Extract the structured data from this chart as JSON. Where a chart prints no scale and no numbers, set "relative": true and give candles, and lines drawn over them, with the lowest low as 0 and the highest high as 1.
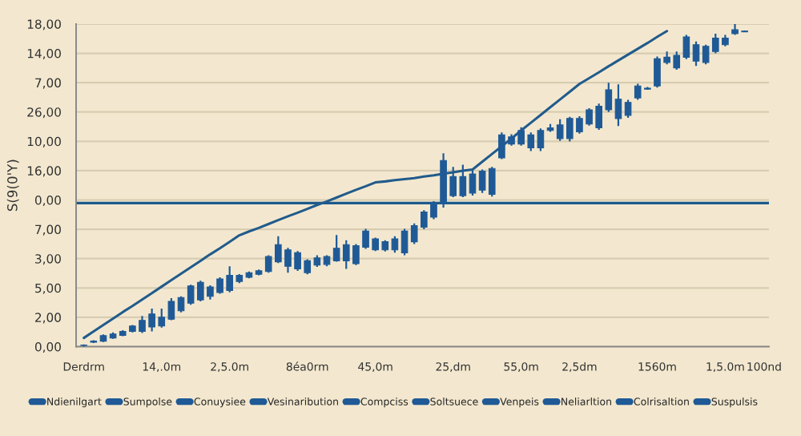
{
  "chart_data": {
    "type": "candlestick",
    "relative": true,
    "ylabel": "S(9(0'Y)",
    "categories": [
      "Derdrm",
      null,
      null,
      null,
      null,
      null,
      null,
      null,
      "14,.0m",
      null,
      null,
      null,
      null,
      null,
      null,
      "2,5.0m",
      null,
      null,
      null,
      null,
      null,
      null,
      null,
      "8éa0rm",
      null,
      null,
      null,
      null,
      null,
      null,
      "45,0m",
      null,
      null,
      null,
      null,
      null,
      null,
      null,
      "25,dm",
      null,
      null,
      null,
      null,
      null,
      null,
      "55,0m",
      null,
      null,
      null,
      null,
      null,
      "2,5dm",
      null,
      null,
      null,
      null,
      null,
      null,
      null,
      "1560m",
      null,
      null,
      null,
      null,
      null,
      null,
      "1,5.0m",
      null,
      null,
      null,
      "100nd"
    ],
    "annotations": [
      "0,00",
      "2,00",
      "5,00",
      "3,00",
      "7,00",
      "0,00",
      "16,00",
      "10,00",
      "26,00",
      "7,00",
      "14,00",
      "18,00"
    ],
    "grid": "y",
    "legend": "bottom",
    "ref_lines": [
      {
        "axis": "y",
        "value": 0.445,
        "color": "#1d5a8c"
      }
    ],
    "series": [
      {
        "name": "Ndienilgart",
        "color": "#1f5a96",
        "ohlc": [
          [
            0.004,
            0.007,
            0,
            0.005
          ],
          [
            0.014,
            0.02,
            0.011,
            0.017
          ],
          [
            0.017,
            0.038,
            0.014,
            0.034
          ],
          [
            0.027,
            0.044,
            0.024,
            0.039
          ],
          [
            0.035,
            0.051,
            0.032,
            0.047
          ],
          [
            0.047,
            0.067,
            0.044,
            0.064
          ],
          [
            0.047,
            0.095,
            0.042,
            0.081
          ],
          null,
          null,
          null,
          null,
          null,
          null,
          null,
          null,
          null,
          null,
          null,
          null,
          null,
          null,
          null,
          null,
          null,
          null,
          null,
          null,
          null,
          null,
          null,
          null,
          null,
          null,
          null,
          null,
          null,
          null,
          null,
          null,
          null,
          null,
          null,
          null,
          null,
          null,
          null,
          null,
          null,
          null,
          null,
          null,
          null,
          null,
          null,
          null,
          null,
          null,
          null,
          null,
          null,
          null,
          null,
          null,
          null,
          null,
          null,
          null,
          null,
          null,
          null,
          null
        ]
      },
      {
        "name": "Sumpolse",
        "color": "#1f5a96",
        "ohlc": [
          null,
          null,
          null,
          null,
          null,
          null,
          null,
          [
            0.061,
            0.118,
            0.047,
            0.101
          ],
          [
            0.064,
            0.118,
            0.059,
            0.091
          ],
          [
            0.085,
            0.15,
            0.082,
            0.14
          ],
          [
            0.111,
            0.156,
            0.106,
            0.152
          ],
          [
            0.135,
            0.192,
            0.13,
            0.188
          ],
          [
            0.145,
            0.204,
            0.14,
            0.199
          ],
          [
            0.156,
            0.19,
            0.146,
            0.185
          ],
          null,
          null,
          null,
          null,
          null,
          null,
          null,
          null,
          null,
          null,
          null,
          null,
          null,
          null,
          null,
          null,
          null,
          null,
          null,
          null,
          null,
          null,
          null,
          null,
          null,
          null,
          null,
          null,
          null,
          null,
          null,
          null,
          null,
          null,
          null,
          null,
          null,
          null,
          null,
          null,
          null,
          null,
          null,
          null,
          null,
          null,
          null,
          null,
          null,
          null,
          null,
          null,
          null,
          null,
          null,
          null,
          null
        ]
      },
      {
        "name": "Conuysiee",
        "color": "#1f5a96",
        "ohlc": [
          null,
          null,
          null,
          null,
          null,
          null,
          null,
          null,
          null,
          null,
          null,
          null,
          null,
          null,
          [
            0.168,
            0.215,
            0.164,
            0.21
          ],
          [
            0.174,
            0.249,
            0.168,
            0.221
          ],
          [
            0.202,
            0.225,
            0.197,
            0.221
          ],
          [
            0.215,
            0.233,
            0.212,
            0.229
          ],
          [
            0.224,
            0.239,
            0.221,
            0.235
          ],
          [
            0.233,
            0.283,
            0.229,
            0.279
          ],
          [
            0.263,
            0.342,
            0.259,
            0.316
          ],
          null,
          null,
          null,
          null,
          null,
          null,
          null,
          null,
          null,
          null,
          null,
          null,
          null,
          null,
          null,
          null,
          null,
          null,
          null,
          null,
          null,
          null,
          null,
          null,
          null,
          null,
          null,
          null,
          null,
          null,
          null,
          null,
          null,
          null,
          null,
          null,
          null,
          null,
          null,
          null,
          null,
          null,
          null,
          null,
          null,
          null,
          null,
          null,
          null,
          null
        ]
      },
      {
        "name": "Vesinaribution",
        "color": "#1f5a96",
        "ohlc": [
          null,
          null,
          null,
          null,
          null,
          null,
          null,
          null,
          null,
          null,
          null,
          null,
          null,
          null,
          null,
          null,
          null,
          null,
          null,
          null,
          null,
          [
            0.249,
            0.306,
            0.229,
            0.3
          ],
          [
            0.241,
            0.296,
            0.235,
            0.291
          ],
          [
            0.229,
            0.271,
            0.224,
            0.266
          ],
          [
            0.253,
            0.283,
            0.247,
            0.275
          ],
          [
            0.255,
            0.283,
            0.249,
            0.279
          ],
          [
            0.266,
            0.346,
            0.263,
            0.305
          ],
          [
            0.266,
            0.33,
            0.241,
            0.316
          ],
          null,
          null,
          null,
          null,
          null,
          null,
          null,
          null,
          null,
          null,
          null,
          null,
          null,
          null,
          null,
          null,
          null,
          null,
          null,
          null,
          null,
          null,
          null,
          null,
          null,
          null,
          null,
          null,
          null,
          null,
          null,
          null,
          null,
          null,
          null,
          null,
          null,
          null,
          null,
          null,
          null,
          null,
          null
        ]
      },
      {
        "name": "Compciss",
        "color": "#1f5a96",
        "ohlc": [
          null,
          null,
          null,
          null,
          null,
          null,
          null,
          null,
          null,
          null,
          null,
          null,
          null,
          null,
          null,
          null,
          null,
          null,
          null,
          null,
          null,
          null,
          null,
          null,
          null,
          null,
          null,
          null,
          [
            0.257,
            0.318,
            0.253,
            0.313
          ],
          [
            0.308,
            0.365,
            0.303,
            0.358
          ],
          [
            0.3,
            0.338,
            0.296,
            0.334
          ],
          [
            0.3,
            0.33,
            0.295,
            0.325
          ],
          [
            0.3,
            0.342,
            0.291,
            0.334
          ],
          [
            0.291,
            0.365,
            0.283,
            0.358
          ],
          [
            0.325,
            0.382,
            0.318,
            0.375
          ],
          null,
          null,
          null,
          null,
          null,
          null,
          null,
          null,
          null,
          null,
          null,
          null,
          null,
          null,
          null,
          null,
          null,
          null,
          null,
          null,
          null,
          null,
          null,
          null,
          null,
          null,
          null,
          null,
          null,
          null,
          null,
          null,
          null,
          null,
          null,
          null
        ]
      },
      {
        "name": "Soltsuece",
        "color": "#1f5a96",
        "ohlc": [
          null,
          null,
          null,
          null,
          null,
          null,
          null,
          null,
          null,
          null,
          null,
          null,
          null,
          null,
          null,
          null,
          null,
          null,
          null,
          null,
          null,
          null,
          null,
          null,
          null,
          null,
          null,
          null,
          null,
          null,
          null,
          null,
          null,
          null,
          null,
          [
            0.37,
            0.423,
            0.364,
            0.417
          ],
          [
            0.401,
            0.451,
            0.395,
            0.446
          ],
          [
            0.443,
            0.599,
            0.431,
            0.577
          ],
          [
            0.468,
            0.557,
            0.463,
            0.527
          ],
          [
            0.468,
            0.564,
            0.463,
            0.527
          ],
          [
            0.476,
            0.545,
            0.468,
            0.535
          ],
          [
            0.485,
            0.549,
            0.476,
            0.544
          ],
          null,
          null,
          null,
          null,
          null,
          null,
          null,
          null,
          null,
          null,
          null,
          null,
          null,
          null,
          null,
          null,
          null,
          null,
          null,
          null,
          null,
          null,
          null,
          null,
          null,
          null,
          null,
          null,
          null
        ]
      },
      {
        "name": "Venpeis",
        "color": "#1f5a96",
        "ohlc": [
          null,
          null,
          null,
          null,
          null,
          null,
          null,
          null,
          null,
          null,
          null,
          null,
          null,
          null,
          null,
          null,
          null,
          null,
          null,
          null,
          null,
          null,
          null,
          null,
          null,
          null,
          null,
          null,
          null,
          null,
          null,
          null,
          null,
          null,
          null,
          null,
          null,
          null,
          null,
          null,
          null,
          null,
          [
            0.472,
            0.557,
            0.465,
            0.552
          ],
          [
            0.585,
            0.664,
            0.581,
            0.656
          ],
          [
            0.628,
            0.658,
            0.623,
            0.65
          ],
          [
            0.628,
            0.68,
            0.623,
            0.67
          ],
          [
            0.616,
            0.664,
            0.606,
            0.656
          ],
          [
            0.616,
            0.676,
            0.606,
            0.67
          ],
          [
            0.67,
            0.69,
            0.666,
            0.678
          ],
          null,
          null,
          null,
          null,
          null,
          null,
          null,
          null,
          null,
          null,
          null,
          null,
          null,
          null,
          null,
          null,
          null,
          null,
          null,
          null,
          null,
          null
        ]
      },
      {
        "name": "Neliarltion",
        "color": "#1f5a96",
        "ohlc": [
          null,
          null,
          null,
          null,
          null,
          null,
          null,
          null,
          null,
          null,
          null,
          null,
          null,
          null,
          null,
          null,
          null,
          null,
          null,
          null,
          null,
          null,
          null,
          null,
          null,
          null,
          null,
          null,
          null,
          null,
          null,
          null,
          null,
          null,
          null,
          null,
          null,
          null,
          null,
          null,
          null,
          null,
          null,
          null,
          null,
          null,
          null,
          null,
          null,
          [
            0.645,
            0.705,
            0.638,
            0.687
          ],
          [
            0.645,
            0.712,
            0.636,
            0.707
          ],
          [
            0.666,
            0.714,
            0.66,
            0.707
          ],
          [
            0.69,
            0.739,
            0.685,
            0.734
          ],
          [
            0.678,
            0.753,
            0.672,
            0.745
          ],
          [
            0.734,
            0.818,
            0.727,
            0.796
          ],
          [
            0.707,
            0.813,
            0.684,
            0.767
          ],
          null,
          null,
          null,
          null,
          null,
          null,
          null,
          null,
          null,
          null,
          null,
          null,
          null,
          null,
          null
        ]
      },
      {
        "name": "Colrisaltion",
        "color": "#1f5a96",
        "ohlc": [
          null,
          null,
          null,
          null,
          null,
          null,
          null,
          null,
          null,
          null,
          null,
          null,
          null,
          null,
          null,
          null,
          null,
          null,
          null,
          null,
          null,
          null,
          null,
          null,
          null,
          null,
          null,
          null,
          null,
          null,
          null,
          null,
          null,
          null,
          null,
          null,
          null,
          null,
          null,
          null,
          null,
          null,
          null,
          null,
          null,
          null,
          null,
          null,
          null,
          null,
          null,
          null,
          null,
          null,
          null,
          null,
          [
            0.717,
            0.765,
            0.709,
            0.757
          ],
          [
            0.771,
            0.815,
            0.765,
            0.808
          ],
          [
            0.798,
            0.805,
            0.796,
            0.801
          ],
          [
            0.808,
            0.899,
            0.803,
            0.892
          ],
          [
            0.881,
            0.915,
            0.875,
            0.897
          ],
          [
            0.864,
            0.915,
            0.858,
            0.903
          ],
          [
            0.897,
            0.966,
            0.891,
            0.96
          ],
          null,
          null,
          null,
          null,
          null,
          null,
          null,
          null
        ]
      },
      {
        "name": "Suspulsis",
        "color": "#1f5a96",
        "ohlc": [
          null,
          null,
          null,
          null,
          null,
          null,
          null,
          null,
          null,
          null,
          null,
          null,
          null,
          null,
          null,
          null,
          null,
          null,
          null,
          null,
          null,
          null,
          null,
          null,
          null,
          null,
          null,
          null,
          null,
          null,
          null,
          null,
          null,
          null,
          null,
          null,
          null,
          null,
          null,
          null,
          null,
          null,
          null,
          null,
          null,
          null,
          null,
          null,
          null,
          null,
          null,
          null,
          null,
          null,
          null,
          null,
          null,
          null,
          null,
          null,
          null,
          null,
          null,
          [
            0.885,
            0.946,
            0.87,
            0.936
          ],
          [
            0.881,
            0.936,
            0.875,
            0.931
          ],
          [
            0.915,
            0.97,
            0.909,
            0.956
          ],
          [
            0.936,
            0.966,
            0.931,
            0.956
          ],
          [
            0.97,
            1.0,
            0.966,
            0.982
          ],
          [
            0.976,
            0.98,
            0.975,
            0.978
          ],
          null,
          null
        ]
      },
      {
        "type": "line",
        "color": "#215b8c",
        "line_style": "solid",
        "values": [
          0.027,
          0.047,
          0.067,
          0.087,
          0.107,
          0.126,
          0.146,
          0.166,
          0.186,
          0.206,
          0.226,
          0.246,
          0.266,
          0.286,
          0.305,
          0.325,
          0.345,
          0.357,
          0.368,
          0.38,
          0.392,
          0.404,
          0.415,
          0.427,
          0.439,
          0.45,
          0.462,
          0.474,
          0.486,
          0.497,
          0.509,
          0.512,
          0.516,
          0.519,
          0.522,
          0.527,
          0.531,
          0.536,
          0.54,
          0.545,
          0.549,
          0.573,
          0.597,
          0.621,
          0.645,
          0.67,
          0.694,
          0.718,
          0.742,
          0.766,
          0.79,
          0.814,
          0.832,
          0.85,
          0.869,
          0.887,
          0.905,
          0.923,
          0.941,
          0.96,
          0.978,
          null,
          null,
          null,
          null,
          null,
          null,
          null,
          null,
          null,
          null
        ]
      }
    ]
  }
}
